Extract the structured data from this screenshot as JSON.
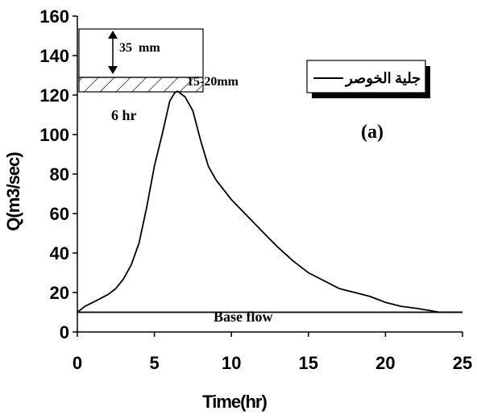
{
  "chart_data": {
    "type": "line",
    "xlabel": "Time(hr)",
    "ylabel": "Q(m3/sec)",
    "xlim": [
      0,
      25
    ],
    "ylim": [
      0,
      160
    ],
    "xticks": [
      "0",
      "5",
      "10",
      "15",
      "20",
      "25"
    ],
    "yticks": [
      "0",
      "20",
      "40",
      "60",
      "80",
      "100",
      "120",
      "140",
      "160"
    ],
    "grid": false,
    "legend_position": "top-right",
    "series": [
      {
        "name": "جلية الخوصر",
        "x": [
          0,
          0.5,
          1,
          1.5,
          2,
          2.5,
          3,
          3.5,
          4,
          4.5,
          5,
          5.5,
          6,
          6.3,
          6.5,
          7,
          7.5,
          8,
          8.5,
          9,
          10,
          11,
          12,
          13,
          14,
          15,
          16,
          17,
          18,
          19,
          20,
          21,
          22,
          22.8,
          23.5,
          24,
          25
        ],
        "y": [
          10,
          13,
          15,
          17,
          19,
          22,
          27,
          34,
          45,
          63,
          84,
          100,
          117,
          121,
          122,
          119,
          112,
          97,
          84,
          77,
          67,
          59,
          51,
          43,
          36,
          30,
          26,
          22,
          20,
          18,
          15,
          13,
          12,
          11,
          10,
          10,
          10
        ]
      },
      {
        "name": "Base flow",
        "x": [
          0,
          25
        ],
        "y": [
          10,
          10
        ]
      }
    ],
    "annotations": {
      "panel_label": "(a)",
      "rain_depth": "35  mm",
      "loss_depth": "15-20mm",
      "duration": "6 hr",
      "base_flow": "Base flow"
    }
  }
}
